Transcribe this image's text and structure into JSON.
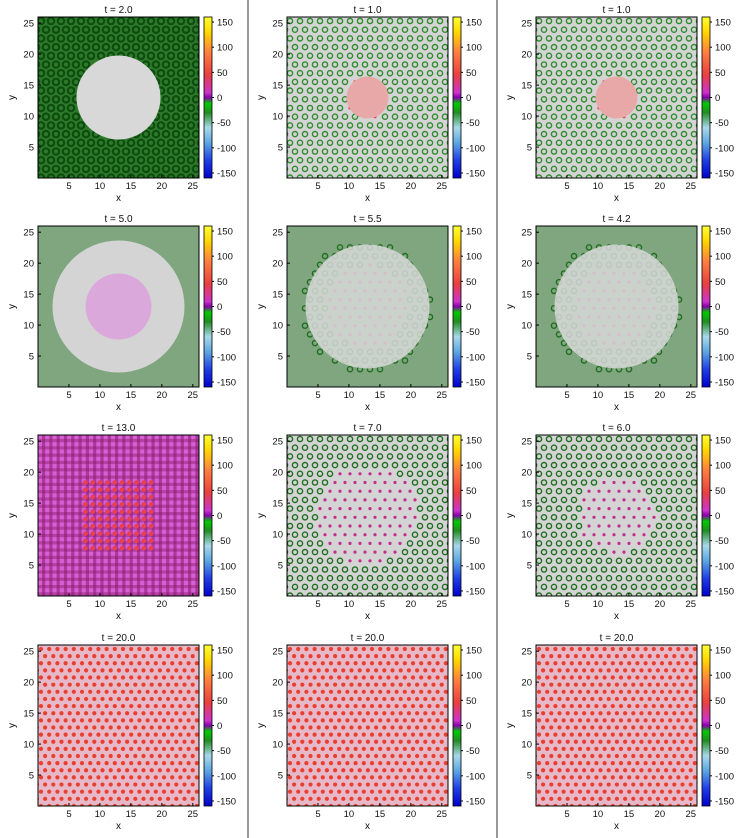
{
  "colorbar": {
    "ticks": [
      150,
      100,
      50,
      0,
      -50,
      -100,
      -150
    ],
    "range": [
      -160,
      160
    ],
    "stops": [
      {
        "v": -160,
        "color": "#0000cc"
      },
      {
        "v": -125,
        "color": "#1f3fe6"
      },
      {
        "v": -90,
        "color": "#5da7e2"
      },
      {
        "v": -60,
        "color": "#a8d8ea"
      },
      {
        "v": -30,
        "color": "#228b22"
      },
      {
        "v": -12,
        "color": "#00cc00"
      },
      {
        "v": 0,
        "color": "#8800aa"
      },
      {
        "v": 10,
        "color": "#cc33cc"
      },
      {
        "v": 45,
        "color": "#e84040"
      },
      {
        "v": 90,
        "color": "#ff7f3f"
      },
      {
        "v": 130,
        "color": "#ffd700"
      },
      {
        "v": 160,
        "color": "#ffff33"
      }
    ]
  },
  "chart_data": [
    {
      "type": "heatmap",
      "title": "t = 2.0",
      "xlabel": "x",
      "ylabel": "y",
      "xticks": [
        5,
        10,
        15,
        20,
        25
      ],
      "yticks": [
        5,
        10,
        15,
        20,
        25
      ],
      "xlim": [
        0,
        26
      ],
      "ylim": [
        0,
        26
      ],
      "colors": {
        "bg": "#2d7a2d",
        "fg": "#0e4d0e",
        "center": "#d8d8d8",
        "dot": "#b040c0"
      }
    },
    {
      "type": "heatmap",
      "title": "t = 1.0",
      "xlabel": "x",
      "ylabel": "y",
      "xticks": [
        5,
        10,
        15,
        20,
        25
      ],
      "yticks": [
        5,
        10,
        15,
        20,
        25
      ],
      "xlim": [
        0,
        26
      ],
      "ylim": [
        0,
        26
      ],
      "colors": {
        "bg": "#d4d4d4",
        "fg": "#2e8b2e",
        "center": "#e8a8a8",
        "dot": "#e84040"
      }
    },
    {
      "type": "heatmap",
      "title": "t = 1.0",
      "xlabel": "x",
      "ylabel": "y",
      "xticks": [
        5,
        10,
        15,
        20,
        25
      ],
      "yticks": [
        5,
        10,
        15,
        20,
        25
      ],
      "xlim": [
        0,
        26
      ],
      "ylim": [
        0,
        26
      ],
      "colors": {
        "bg": "#d4d4d4",
        "fg": "#2e8b2e",
        "center": "#e8a8a8",
        "dot": "#e84040"
      }
    },
    {
      "type": "heatmap",
      "title": "t = 5.0",
      "xlabel": "x",
      "ylabel": "y",
      "xticks": [
        5,
        10,
        15,
        20,
        25
      ],
      "yticks": [
        5,
        10,
        15,
        20,
        25
      ],
      "xlim": [
        0,
        26
      ],
      "ylim": [
        0,
        26
      ],
      "colors": {
        "bg": "#7fa67f",
        "fg": "#d4d4d4",
        "center": "#dba8db",
        "dot": "#dba8db"
      }
    },
    {
      "type": "heatmap",
      "title": "t = 5.5",
      "xlabel": "x",
      "ylabel": "y",
      "xticks": [
        5,
        10,
        15,
        20,
        25
      ],
      "yticks": [
        5,
        10,
        15,
        20,
        25
      ],
      "xlim": [
        0,
        26
      ],
      "ylim": [
        0,
        26
      ],
      "colors": {
        "bg": "#7fa67f",
        "fg": "#1f6e1f",
        "center": "#d8d8d8",
        "dot": "#c0308a"
      }
    },
    {
      "type": "heatmap",
      "title": "t = 4.2",
      "xlabel": "x",
      "ylabel": "y",
      "xticks": [
        5,
        10,
        15,
        20,
        25
      ],
      "yticks": [
        5,
        10,
        15,
        20,
        25
      ],
      "xlim": [
        0,
        26
      ],
      "ylim": [
        0,
        26
      ],
      "colors": {
        "bg": "#7fa67f",
        "fg": "#1f6e1f",
        "center": "#d8d8d8",
        "dot": "#c0308a"
      }
    },
    {
      "type": "heatmap",
      "title": "t = 13.0",
      "xlabel": "x",
      "ylabel": "y",
      "xticks": [
        5,
        10,
        15,
        20,
        25
      ],
      "yticks": [
        5,
        10,
        15,
        20,
        25
      ],
      "xlim": [
        0,
        26
      ],
      "ylim": [
        0,
        26
      ],
      "colors": {
        "bg": "#d560d5",
        "fg": "#8a1a6a",
        "center": "#8a1a6a",
        "dot": "#e84050"
      }
    },
    {
      "type": "heatmap",
      "title": "t = 7.0",
      "xlabel": "x",
      "ylabel": "y",
      "xticks": [
        5,
        10,
        15,
        20,
        25
      ],
      "yticks": [
        5,
        10,
        15,
        20,
        25
      ],
      "xlim": [
        0,
        26
      ],
      "ylim": [
        0,
        26
      ],
      "colors": {
        "bg": "#d4d4d4",
        "fg": "#1f6e1f",
        "center": "#d8d8d8",
        "dot": "#c0308a"
      }
    },
    {
      "type": "heatmap",
      "title": "t = 6.0",
      "xlabel": "x",
      "ylabel": "y",
      "xticks": [
        5,
        10,
        15,
        20,
        25
      ],
      "yticks": [
        5,
        10,
        15,
        20,
        25
      ],
      "xlim": [
        0,
        26
      ],
      "ylim": [
        0,
        26
      ],
      "colors": {
        "bg": "#d4d4d4",
        "fg": "#1f6e1f",
        "center": "#d8d8d8",
        "dot": "#c0308a"
      }
    },
    {
      "type": "heatmap",
      "title": "t = 20.0",
      "xlabel": "x",
      "ylabel": "y",
      "xticks": [
        5,
        10,
        15,
        20,
        25
      ],
      "yticks": [
        5,
        10,
        15,
        20,
        25
      ],
      "xlim": [
        0,
        26
      ],
      "ylim": [
        0,
        26
      ],
      "colors": {
        "bg": "#e6b8c8",
        "fg": "#e6b8c8",
        "center": "#e6b8c8",
        "dot": "#e84030"
      }
    },
    {
      "type": "heatmap",
      "title": "t = 20.0",
      "xlabel": "x",
      "ylabel": "y",
      "xticks": [
        5,
        10,
        15,
        20,
        25
      ],
      "yticks": [
        5,
        10,
        15,
        20,
        25
      ],
      "xlim": [
        0,
        26
      ],
      "ylim": [
        0,
        26
      ],
      "colors": {
        "bg": "#e6b8c8",
        "fg": "#e6b8c8",
        "center": "#e6b8c8",
        "dot": "#e84030"
      }
    },
    {
      "type": "heatmap",
      "title": "t = 20.0",
      "xlabel": "x",
      "ylabel": "y",
      "xticks": [
        5,
        10,
        15,
        20,
        25
      ],
      "yticks": [
        5,
        10,
        15,
        20,
        25
      ],
      "xlim": [
        0,
        26
      ],
      "ylim": [
        0,
        26
      ],
      "colors": {
        "bg": "#e6b8c8",
        "fg": "#e6b8c8",
        "center": "#e6b8c8",
        "dot": "#e84030"
      }
    }
  ]
}
